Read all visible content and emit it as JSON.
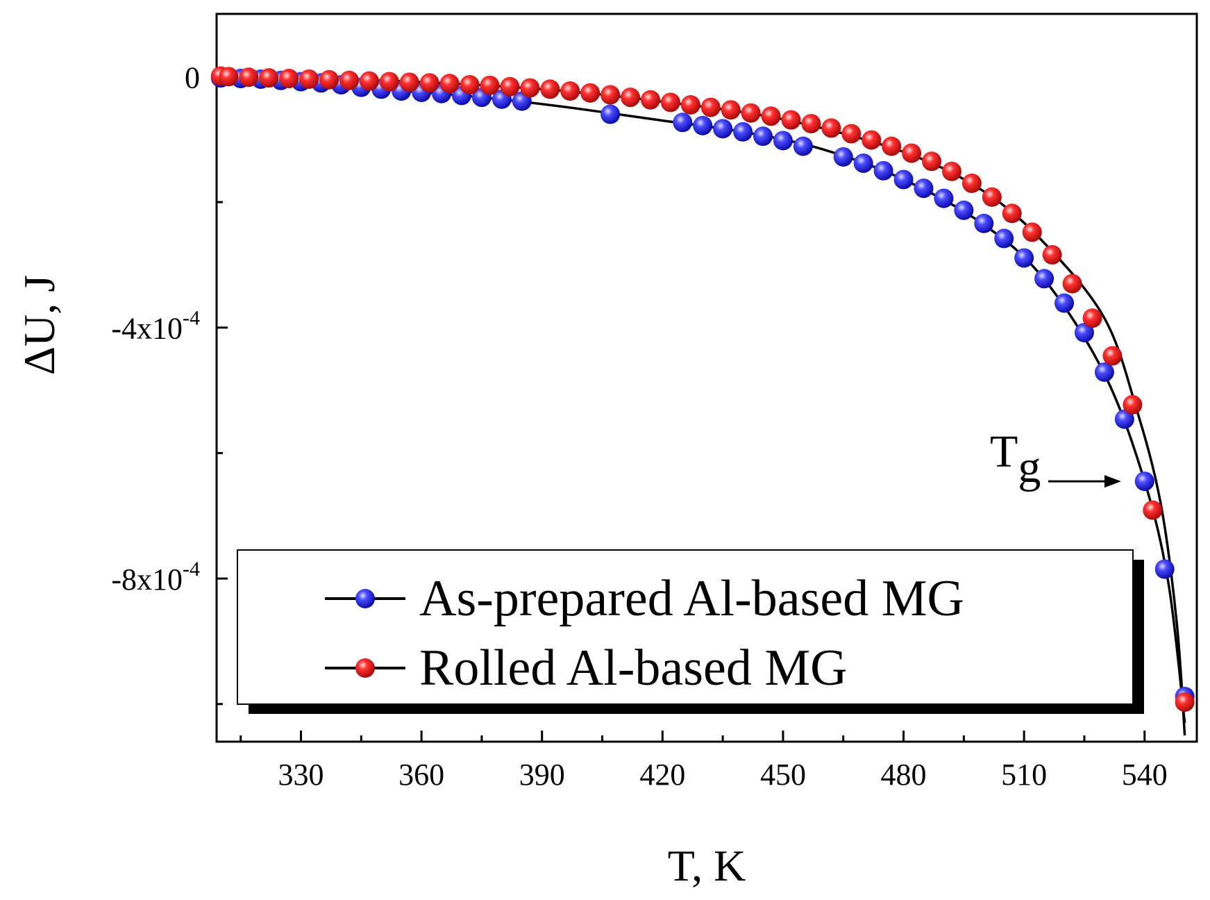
{
  "chart_data": {
    "type": "scatter",
    "title": "",
    "xlabel": "T, K",
    "ylabel": "ΔU, J",
    "xlim": [
      309,
      553
    ],
    "ylim": [
      -0.00106,
      0.0001
    ],
    "x_ticks": [
      330,
      360,
      390,
      420,
      450,
      480,
      510,
      540
    ],
    "x_tick_labels": [
      "330",
      "360",
      "390",
      "420",
      "450",
      "480",
      "510",
      "540"
    ],
    "x_minor_ticks": [
      315,
      345,
      375,
      405,
      435,
      465,
      495,
      525
    ],
    "y_ticks": [
      0,
      -0.0004,
      -0.0008
    ],
    "y_tick_labels": [
      {
        "base": "0",
        "exp": ""
      },
      {
        "base": "-4x10",
        "exp": "-4"
      },
      {
        "base": "-8x10",
        "exp": "-4"
      }
    ],
    "y_minor_ticks": [
      -0.0002,
      -0.0006,
      -0.001
    ],
    "grid": false,
    "legend_position": "bottom-left",
    "annotation": {
      "text": "T",
      "subscript": "g",
      "x": 539,
      "y": -0.000645
    },
    "series": [
      {
        "name": "As-prepared Al-based MG",
        "color": "#1f1fe0",
        "x": [
          310,
          315,
          320,
          325,
          330,
          335,
          340,
          345,
          350,
          355,
          360,
          365,
          370,
          375,
          380,
          385,
          407,
          425,
          430,
          435,
          440,
          445,
          450,
          455,
          465,
          470,
          475,
          480,
          485,
          490,
          495,
          500,
          505,
          510,
          515,
          520,
          525,
          530,
          535,
          540,
          545,
          550
        ],
        "y": [
          -2e-06,
          -3e-06,
          -4e-06,
          -6e-06,
          -8e-06,
          -1e-05,
          -1.3e-05,
          -1.7e-05,
          -2e-05,
          -2.3e-05,
          -2.5e-05,
          -2.7e-05,
          -3e-05,
          -3.3e-05,
          -3.6e-05,
          -3.9e-05,
          -6e-05,
          -7.3e-05,
          -7.8e-05,
          -8.3e-05,
          -8.8e-05,
          -9.5e-05,
          -0.000102,
          -0.000111,
          -0.000128,
          -0.000138,
          -0.00015,
          -0.000164,
          -0.000178,
          -0.000194,
          -0.000213,
          -0.000234,
          -0.000258,
          -0.000289,
          -0.000322,
          -0.000361,
          -0.000408,
          -0.000471,
          -0.000546,
          -0.000645,
          -0.000785,
          -0.000988
        ]
      },
      {
        "name": "Rolled Al-based MG",
        "color": "#e01f1f",
        "x": [
          310,
          312,
          317,
          322,
          327,
          332,
          337,
          342,
          347,
          352,
          357,
          362,
          367,
          372,
          377,
          382,
          387,
          392,
          397,
          402,
          407,
          412,
          417,
          422,
          427,
          432,
          437,
          442,
          447,
          452,
          457,
          462,
          467,
          472,
          477,
          482,
          487,
          492,
          497,
          502,
          507,
          512,
          517,
          522,
          527,
          532,
          537,
          542,
          550
        ],
        "y": [
          1e-06,
          0,
          -1e-06,
          -2e-06,
          -3e-06,
          -4e-06,
          -5e-06,
          -6e-06,
          -7e-06,
          -8e-06,
          -9e-06,
          -1e-05,
          -1.1e-05,
          -1.3e-05,
          -1.4e-05,
          -1.6e-05,
          -1.8e-05,
          -2e-05,
          -2.3e-05,
          -2.6e-05,
          -2.9e-05,
          -3.3e-05,
          -3.7e-05,
          -4.1e-05,
          -4.5e-05,
          -4.9e-05,
          -5.3e-05,
          -5.8e-05,
          -6.3e-05,
          -6.9e-05,
          -7.5e-05,
          -8.2e-05,
          -9.1e-05,
          -0.000101,
          -0.000111,
          -0.000122,
          -0.000135,
          -0.000151,
          -0.00017,
          -0.000192,
          -0.000218,
          -0.000248,
          -0.000284,
          -0.00033,
          -0.000385,
          -0.000445,
          -0.000523,
          -0.000691,
          -0.000997
        ]
      }
    ],
    "fit_curves": [
      {
        "color": "#000000",
        "x": [
          310,
          330,
          350,
          370,
          385,
          400,
          420,
          440,
          460,
          480,
          500,
          515,
          530,
          540,
          546,
          550
        ],
        "y": [
          0,
          -8e-06,
          -2e-05,
          -3e-05,
          -4e-05,
          -5.2e-05,
          -7e-05,
          -8.8e-05,
          -0.000116,
          -0.000164,
          -0.000236,
          -0.000323,
          -0.000474,
          -0.000645,
          -0.00081,
          -0.00103
        ]
      },
      {
        "color": "#000000",
        "x": [
          310,
          350,
          390,
          420,
          450,
          480,
          500,
          515,
          530,
          538,
          544,
          548,
          550
        ],
        "y": [
          0,
          -6e-06,
          -2e-05,
          -4e-05,
          -6.8e-05,
          -0.00012,
          -0.000183,
          -0.000265,
          -0.000385,
          -0.00053,
          -0.00068,
          -0.00087,
          -0.00105
        ]
      }
    ]
  }
}
